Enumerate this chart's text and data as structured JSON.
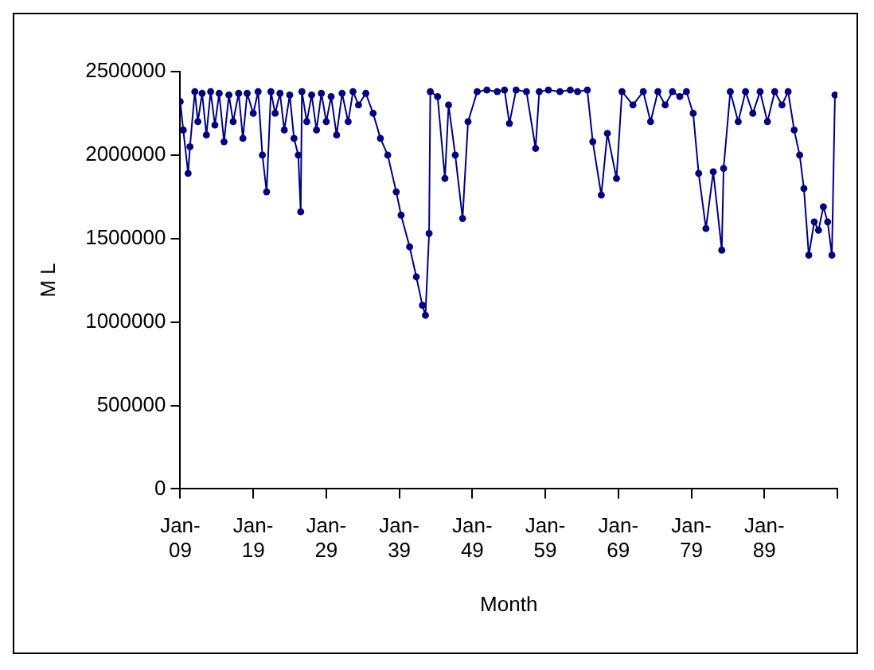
{
  "chart_data": {
    "type": "line",
    "xlabel": "Month",
    "ylabel": "M L",
    "x": [
      "1909-01",
      "1909-06",
      "1910-02",
      "1910-05",
      "1911-01",
      "1911-06",
      "1912-01",
      "1912-08",
      "1913-03",
      "1913-10",
      "1914-05",
      "1915-01",
      "1915-09",
      "1916-04",
      "1917-01",
      "1917-08",
      "1918-03",
      "1919-01",
      "1919-09",
      "1920-04",
      "1920-11",
      "1921-06",
      "1922-01",
      "1922-09",
      "1923-04",
      "1924-01",
      "1924-08",
      "1925-03",
      "1925-07",
      "1925-09",
      "1926-05",
      "1927-01",
      "1927-09",
      "1928-05",
      "1929-01",
      "1929-09",
      "1930-06",
      "1931-03",
      "1932-01",
      "1932-09",
      "1933-06",
      "1934-06",
      "1935-06",
      "1936-06",
      "1937-06",
      "1938-08",
      "1939-04",
      "1940-06",
      "1941-05",
      "1942-03",
      "1942-08",
      "1943-02",
      "1943-04",
      "1944-04",
      "1945-04",
      "1945-10",
      "1946-09",
      "1947-09",
      "1948-06",
      "1949-09",
      "1951-01",
      "1952-06",
      "1953-06",
      "1954-02",
      "1955-01",
      "1956-06",
      "1957-09",
      "1958-03",
      "1959-06",
      "1961-01",
      "1962-06",
      "1963-06",
      "1964-10",
      "1965-07",
      "1966-09",
      "1967-07",
      "1968-10",
      "1969-07",
      "1971-01",
      "1972-06",
      "1973-06",
      "1974-06",
      "1975-06",
      "1976-06",
      "1977-06",
      "1978-05",
      "1979-04",
      "1980-01",
      "1981-01",
      "1982-01",
      "1983-03",
      "1983-06",
      "1984-05",
      "1985-06",
      "1986-06",
      "1987-06",
      "1988-06",
      "1989-06",
      "1990-06",
      "1991-06",
      "1992-04",
      "1993-02",
      "1993-11",
      "1994-06",
      "1995-02",
      "1995-11",
      "1996-06",
      "1997-02",
      "1997-09",
      "1998-04",
      "1998-09"
    ],
    "series": [
      {
        "color": "#000080",
        "values": [
          2320000,
          2150000,
          1890000,
          2050000,
          2380000,
          2200000,
          2370000,
          2120000,
          2380000,
          2180000,
          2370000,
          2080000,
          2360000,
          2200000,
          2370000,
          2100000,
          2370000,
          2250000,
          2380000,
          2000000,
          1780000,
          2380000,
          2250000,
          2370000,
          2150000,
          2360000,
          2100000,
          2000000,
          1660000,
          2380000,
          2200000,
          2360000,
          2150000,
          2370000,
          2200000,
          2350000,
          2120000,
          2370000,
          2200000,
          2380000,
          2300000,
          2370000,
          2250000,
          2100000,
          2000000,
          1780000,
          1640000,
          1450000,
          1270000,
          1100000,
          1040000,
          1530000,
          2380000,
          2350000,
          1860000,
          2300000,
          2000000,
          1620000,
          2200000,
          2380000,
          2390000,
          2380000,
          2390000,
          2190000,
          2390000,
          2380000,
          2040000,
          2380000,
          2390000,
          2380000,
          2390000,
          2380000,
          2390000,
          2080000,
          1760000,
          2130000,
          1860000,
          2380000,
          2300000,
          2380000,
          2200000,
          2380000,
          2300000,
          2380000,
          2350000,
          2380000,
          2250000,
          1890000,
          1560000,
          1900000,
          1430000,
          1920000,
          2380000,
          2200000,
          2380000,
          2250000,
          2380000,
          2200000,
          2380000,
          2300000,
          2380000,
          2150000,
          2000000,
          1800000,
          1400000,
          1600000,
          1550000,
          1690000,
          1600000,
          1400000,
          2360000
        ]
      }
    ],
    "xlim": [
      "1909-01",
      "1999-01"
    ],
    "xticks": [
      {
        "value": "1909-01",
        "label": "Jan-09"
      },
      {
        "value": "1919-01",
        "label": "Jan-19"
      },
      {
        "value": "1929-01",
        "label": "Jan-29"
      },
      {
        "value": "1939-01",
        "label": "Jan-39"
      },
      {
        "value": "1949-01",
        "label": "Jan-49"
      },
      {
        "value": "1959-01",
        "label": "Jan-59"
      },
      {
        "value": "1969-01",
        "label": "Jan-69"
      },
      {
        "value": "1979-01",
        "label": "Jan-79"
      },
      {
        "value": "1989-01",
        "label": "Jan-89"
      },
      {
        "value": "1999-01",
        "label": null
      }
    ],
    "ylim": [
      0,
      2500000
    ],
    "yticks": [
      0,
      500000,
      1000000,
      1500000,
      2000000,
      2500000
    ],
    "grid": false,
    "legend": false,
    "marker": "circle",
    "line_style": "solid"
  }
}
